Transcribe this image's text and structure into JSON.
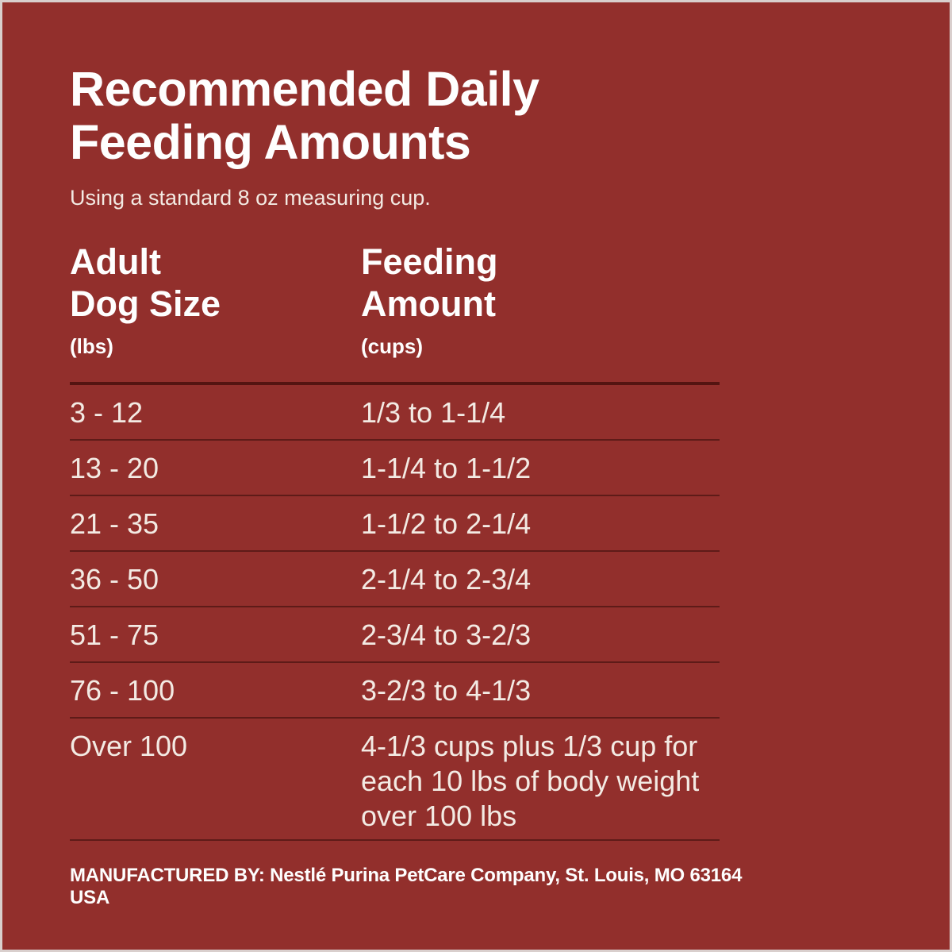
{
  "page": {
    "background_color": "#922F2C",
    "edge_border_color": "#D9CFCD",
    "divider_color": "#5E1B18",
    "text_color_title": "#FEFEFE",
    "text_color_body": "#F3EAE3"
  },
  "header": {
    "title_line1": "Recommended Daily",
    "title_line2": "Feeding Amounts",
    "subtitle": "Using a standard 8 oz measuring cup."
  },
  "table": {
    "columns": [
      {
        "label_line1": "Adult",
        "label_line2": "Dog Size",
        "unit": "(lbs)"
      },
      {
        "label_line1": "Feeding",
        "label_line2": "Amount",
        "unit": "(cups)"
      }
    ],
    "rows": [
      {
        "size": "3 - 12",
        "amount": "1/3 to 1-1/4"
      },
      {
        "size": "13 - 20",
        "amount": "1-1/4 to 1-1/2"
      },
      {
        "size": "21 - 35",
        "amount": "1-1/2 to 2-1/4"
      },
      {
        "size": "36 - 50",
        "amount": "2-1/4 to 2-3/4"
      },
      {
        "size": "51 - 75",
        "amount": "2-3/4 to 3-2/3"
      },
      {
        "size": "76 - 100",
        "amount": "3-2/3 to 4-1/3"
      },
      {
        "size": "Over 100",
        "amount": "4-1/3 cups plus 1/3 cup for each 10 lbs of body weight over 100 lbs"
      }
    ]
  },
  "footer": {
    "text": "MANUFACTURED BY: Nestlé Purina PetCare Company, St. Louis, MO 63164 USA"
  }
}
